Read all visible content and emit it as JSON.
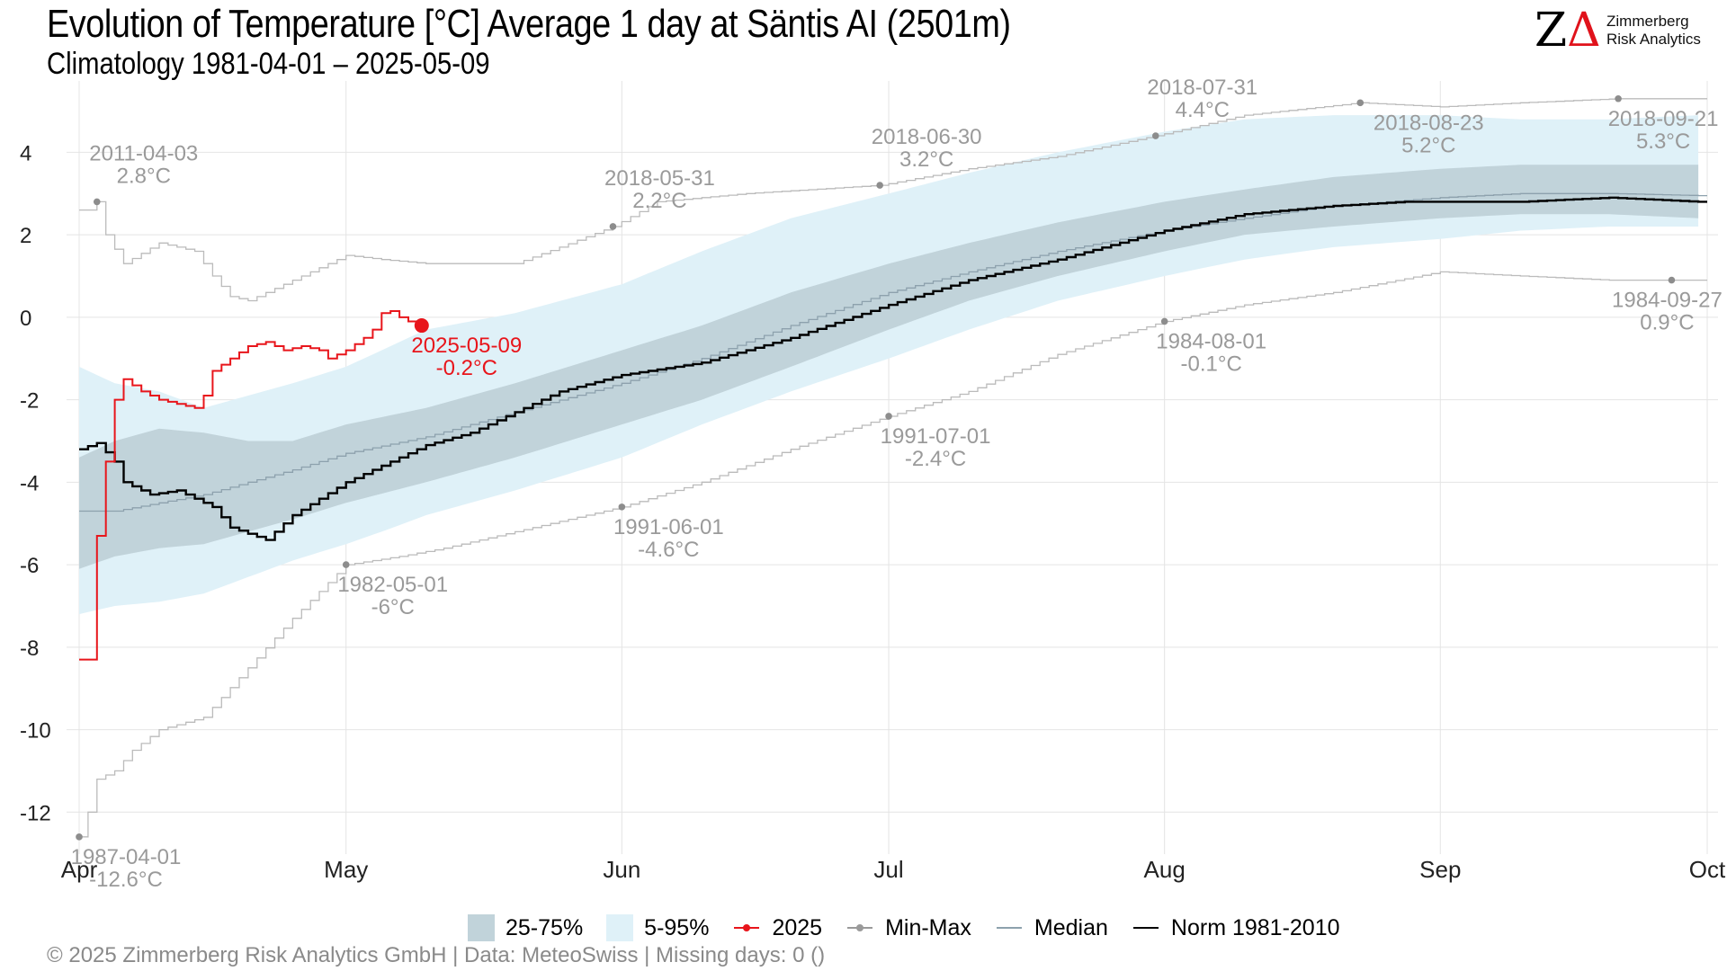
{
  "title": "Evolution of Temperature [°C] Average 1 day at Säntis  AI (2501m)",
  "subtitle": "Climatology 1981-04-01 – 2025-05-09",
  "logo": {
    "mark_left": "Z",
    "mark_right": "Δ",
    "name_line1": "Zimmerberg",
    "name_line2": "Risk Analytics"
  },
  "footer": "©  2025 Zimmerberg Risk Analytics GmbH | Data: MeteoSwiss | Missing days: 0 ()",
  "legend": [
    {
      "label": "25-75%",
      "icon": "band-square",
      "color": "#c1d3da"
    },
    {
      "label": "5-95%",
      "icon": "band-square",
      "color": "#dff1f8"
    },
    {
      "label": "2025",
      "icon": "line-dot",
      "color": "#e8151b"
    },
    {
      "label": "Min-Max",
      "icon": "line-dot",
      "color": "#9a9a9a"
    },
    {
      "label": "Median",
      "icon": "line",
      "color": "#8da1ad"
    },
    {
      "label": "Norm 1981-2010",
      "icon": "line",
      "color": "#000000"
    }
  ],
  "chart_data": {
    "type": "line",
    "x_axis": {
      "type": "date",
      "range": [
        "1981-04-01",
        "1981-10-01"
      ],
      "tick_labels": [
        "Apr",
        "May",
        "Jun",
        "Jul",
        "Aug",
        "Sep",
        "Oct"
      ]
    },
    "y_axis": {
      "range": [
        -12.8,
        5.6
      ],
      "ticks": [
        -12,
        -10,
        -8,
        -6,
        -4,
        -2,
        0,
        2,
        4
      ],
      "tick_labels": [
        "-12",
        "-10",
        "-8",
        "-6",
        "-4",
        "-2",
        "0",
        "2",
        "4"
      ]
    },
    "grid": true,
    "legend_position": "bottom",
    "colors": {
      "band_25_75": "#c1d3da",
      "band_5_95": "#dff1f8",
      "current": "#e8151b",
      "minmax": "#bbbbbb",
      "median": "#8da1ad",
      "norm": "#000000",
      "annotation": "#9a9a9a"
    },
    "series": [
      {
        "name": "2025",
        "points": [
          [
            "04-01",
            -8.3
          ],
          [
            "04-02",
            -8.3
          ],
          [
            "04-03",
            -5.3
          ],
          [
            "04-04",
            -3.5
          ],
          [
            "04-05",
            -2.0
          ],
          [
            "04-06",
            -1.5
          ],
          [
            "04-08",
            -1.8
          ],
          [
            "04-10",
            -2.0
          ],
          [
            "04-12",
            -2.1
          ],
          [
            "04-14",
            -2.2
          ],
          [
            "04-15",
            -1.9
          ],
          [
            "04-16",
            -1.3
          ],
          [
            "04-18",
            -1.0
          ],
          [
            "04-20",
            -0.7
          ],
          [
            "04-22",
            -0.6
          ],
          [
            "04-24",
            -0.8
          ],
          [
            "04-26",
            -0.7
          ],
          [
            "04-28",
            -0.8
          ],
          [
            "04-29",
            -1.0
          ],
          [
            "04-30",
            -0.9
          ],
          [
            "05-01",
            -0.8
          ],
          [
            "05-03",
            -0.5
          ],
          [
            "05-04",
            -0.3
          ],
          [
            "05-05",
            0.1
          ],
          [
            "05-06",
            0.15
          ],
          [
            "05-07",
            0.0
          ],
          [
            "05-08",
            -0.1
          ],
          [
            "05-09",
            -0.2
          ]
        ]
      },
      {
        "name": "Min-Max",
        "part": "max",
        "points": [
          [
            "04-01",
            2.6
          ],
          [
            "04-02",
            2.6
          ],
          [
            "04-03",
            2.8
          ],
          [
            "04-04",
            2.0
          ],
          [
            "04-06",
            1.3
          ],
          [
            "04-10",
            1.8
          ],
          [
            "04-14",
            1.6
          ],
          [
            "04-16",
            1.0
          ],
          [
            "04-18",
            0.5
          ],
          [
            "04-20",
            0.4
          ],
          [
            "04-25",
            0.9
          ],
          [
            "05-01",
            1.5
          ],
          [
            "05-05",
            1.4
          ],
          [
            "05-10",
            1.3
          ],
          [
            "05-20",
            1.3
          ],
          [
            "05-25",
            1.7
          ],
          [
            "05-31",
            2.2
          ],
          [
            "06-05",
            2.8
          ],
          [
            "06-15",
            3.0
          ],
          [
            "06-30",
            3.2
          ],
          [
            "07-10",
            3.6
          ],
          [
            "07-20",
            3.9
          ],
          [
            "07-31",
            4.4
          ],
          [
            "08-10",
            4.9
          ],
          [
            "08-23",
            5.2
          ],
          [
            "09-01",
            5.1
          ],
          [
            "09-10",
            5.2
          ],
          [
            "09-21",
            5.3
          ],
          [
            "09-30",
            5.3
          ]
        ]
      },
      {
        "name": "Min-Max",
        "part": "min",
        "points": [
          [
            "04-01",
            -12.6
          ],
          [
            "04-02",
            -12.0
          ],
          [
            "04-03",
            -11.2
          ],
          [
            "04-05",
            -11.0
          ],
          [
            "04-07",
            -10.5
          ],
          [
            "04-10",
            -10.0
          ],
          [
            "04-15",
            -9.7
          ],
          [
            "04-20",
            -8.5
          ],
          [
            "04-25",
            -7.3
          ],
          [
            "05-01",
            -6.0
          ],
          [
            "05-07",
            -5.8
          ],
          [
            "05-12",
            -5.6
          ],
          [
            "05-20",
            -5.2
          ],
          [
            "06-01",
            -4.6
          ],
          [
            "06-10",
            -4.0
          ],
          [
            "06-20",
            -3.2
          ],
          [
            "07-01",
            -2.4
          ],
          [
            "07-10",
            -1.8
          ],
          [
            "07-20",
            -0.9
          ],
          [
            "08-01",
            -0.1
          ],
          [
            "08-10",
            0.3
          ],
          [
            "08-20",
            0.6
          ],
          [
            "09-01",
            1.1
          ],
          [
            "09-10",
            1.0
          ],
          [
            "09-20",
            0.9
          ],
          [
            "09-27",
            0.9
          ],
          [
            "09-30",
            0.9
          ]
        ]
      },
      {
        "name": "Median",
        "points": [
          [
            "04-01",
            -4.7
          ],
          [
            "04-05",
            -4.7
          ],
          [
            "04-10",
            -4.5
          ],
          [
            "04-15",
            -4.3
          ],
          [
            "04-20",
            -4.0
          ],
          [
            "04-25",
            -3.7
          ],
          [
            "05-01",
            -3.3
          ],
          [
            "05-10",
            -2.9
          ],
          [
            "05-20",
            -2.3
          ],
          [
            "06-01",
            -1.6
          ],
          [
            "06-10",
            -1.0
          ],
          [
            "06-20",
            -0.2
          ],
          [
            "07-01",
            0.6
          ],
          [
            "07-10",
            1.1
          ],
          [
            "07-20",
            1.6
          ],
          [
            "08-01",
            2.1
          ],
          [
            "08-10",
            2.4
          ],
          [
            "08-20",
            2.7
          ],
          [
            "09-01",
            2.9
          ],
          [
            "09-10",
            3.0
          ],
          [
            "09-20",
            3.0
          ],
          [
            "09-30",
            2.95
          ]
        ]
      },
      {
        "name": "Norm 1981-2010",
        "points": [
          [
            "04-01",
            -3.2
          ],
          [
            "04-03",
            -3.05
          ],
          [
            "04-05",
            -3.5
          ],
          [
            "04-06",
            -4.0
          ],
          [
            "04-09",
            -4.3
          ],
          [
            "04-12",
            -4.2
          ],
          [
            "04-16",
            -4.6
          ],
          [
            "04-18",
            -5.1
          ],
          [
            "04-22",
            -5.4
          ],
          [
            "04-25",
            -4.8
          ],
          [
            "04-28",
            -4.4
          ],
          [
            "05-01",
            -4.0
          ],
          [
            "05-05",
            -3.6
          ],
          [
            "05-10",
            -3.1
          ],
          [
            "05-15",
            -2.8
          ],
          [
            "05-20",
            -2.3
          ],
          [
            "05-25",
            -1.8
          ],
          [
            "06-01",
            -1.4
          ],
          [
            "06-10",
            -1.1
          ],
          [
            "06-20",
            -0.5
          ],
          [
            "07-01",
            0.3
          ],
          [
            "07-10",
            0.9
          ],
          [
            "07-20",
            1.4
          ],
          [
            "08-01",
            2.1
          ],
          [
            "08-10",
            2.5
          ],
          [
            "08-20",
            2.7
          ],
          [
            "08-28",
            2.8
          ],
          [
            "09-10",
            2.8
          ],
          [
            "09-20",
            2.9
          ],
          [
            "09-30",
            2.8
          ]
        ]
      },
      {
        "name": "25-75%",
        "points_low_high": [
          [
            "04-01",
            -6.1,
            -3.4
          ],
          [
            "04-05",
            -5.8,
            -3.0
          ],
          [
            "04-10",
            -5.6,
            -2.7
          ],
          [
            "04-15",
            -5.5,
            -2.8
          ],
          [
            "04-20",
            -5.2,
            -3.0
          ],
          [
            "04-25",
            -4.9,
            -3.0
          ],
          [
            "05-01",
            -4.5,
            -2.6
          ],
          [
            "05-10",
            -4.0,
            -2.2
          ],
          [
            "05-20",
            -3.4,
            -1.6
          ],
          [
            "06-01",
            -2.6,
            -0.8
          ],
          [
            "06-10",
            -2.0,
            -0.2
          ],
          [
            "06-20",
            -1.2,
            0.6
          ],
          [
            "07-01",
            -0.3,
            1.3
          ],
          [
            "07-10",
            0.4,
            1.8
          ],
          [
            "07-20",
            1.0,
            2.3
          ],
          [
            "08-01",
            1.6,
            2.8
          ],
          [
            "08-10",
            2.0,
            3.1
          ],
          [
            "08-20",
            2.2,
            3.4
          ],
          [
            "09-01",
            2.4,
            3.6
          ],
          [
            "09-10",
            2.5,
            3.7
          ],
          [
            "09-20",
            2.5,
            3.7
          ],
          [
            "09-30",
            2.4,
            3.7
          ]
        ]
      },
      {
        "name": "5-95%",
        "points_low_high": [
          [
            "04-01",
            -7.2,
            -1.2
          ],
          [
            "04-05",
            -7.0,
            -1.6
          ],
          [
            "04-10",
            -6.9,
            -1.8
          ],
          [
            "04-15",
            -6.7,
            -2.2
          ],
          [
            "04-20",
            -6.3,
            -1.9
          ],
          [
            "04-25",
            -5.9,
            -1.6
          ],
          [
            "05-01",
            -5.5,
            -1.2
          ],
          [
            "05-05",
            -5.2,
            -0.8
          ],
          [
            "05-10",
            -4.8,
            -0.3
          ],
          [
            "05-20",
            -4.2,
            0.1
          ],
          [
            "06-01",
            -3.4,
            0.8
          ],
          [
            "06-10",
            -2.6,
            1.6
          ],
          [
            "06-20",
            -1.8,
            2.4
          ],
          [
            "07-01",
            -1.0,
            3.0
          ],
          [
            "07-10",
            -0.3,
            3.5
          ],
          [
            "07-20",
            0.4,
            4.0
          ],
          [
            "08-01",
            1.0,
            4.5
          ],
          [
            "08-10",
            1.4,
            4.8
          ],
          [
            "08-20",
            1.7,
            4.9
          ],
          [
            "09-01",
            1.9,
            4.9
          ],
          [
            "09-10",
            2.1,
            4.8
          ],
          [
            "09-20",
            2.2,
            4.8
          ],
          [
            "09-30",
            2.2,
            4.9
          ]
        ]
      }
    ],
    "annotations": [
      {
        "kind": "max",
        "x": "04-03",
        "y": 2.8,
        "date": "2011-04-03",
        "value": "2.8°C"
      },
      {
        "kind": "max",
        "x": "05-31",
        "y": 2.2,
        "date": "2018-05-31",
        "value": "2.2°C"
      },
      {
        "kind": "max",
        "x": "06-30",
        "y": 3.2,
        "date": "2018-06-30",
        "value": "3.2°C"
      },
      {
        "kind": "max",
        "x": "07-31",
        "y": 4.4,
        "date": "2018-07-31",
        "value": "4.4°C"
      },
      {
        "kind": "max",
        "x": "08-23",
        "y": 5.2,
        "date": "2018-08-23",
        "value": "5.2°C"
      },
      {
        "kind": "max",
        "x": "09-21",
        "y": 5.3,
        "date": "2018-09-21",
        "value": "5.3°C"
      },
      {
        "kind": "min",
        "x": "04-01",
        "y": -12.6,
        "date": "1987-04-01",
        "value": "-12.6°C"
      },
      {
        "kind": "min",
        "x": "05-01",
        "y": -6.0,
        "date": "1982-05-01",
        "value": "-6°C"
      },
      {
        "kind": "min",
        "x": "06-01",
        "y": -4.6,
        "date": "1991-06-01",
        "value": "-4.6°C"
      },
      {
        "kind": "min",
        "x": "07-01",
        "y": -2.4,
        "date": "1991-07-01",
        "value": "-2.4°C"
      },
      {
        "kind": "min",
        "x": "08-01",
        "y": -0.1,
        "date": "1984-08-01",
        "value": "-0.1°C"
      },
      {
        "kind": "min",
        "x": "09-27",
        "y": 0.9,
        "date": "1984-09-27",
        "value": "0.9°C"
      },
      {
        "kind": "current",
        "x": "05-09",
        "y": -0.2,
        "date": "2025-05-09",
        "value": "-0.2°C"
      }
    ]
  }
}
